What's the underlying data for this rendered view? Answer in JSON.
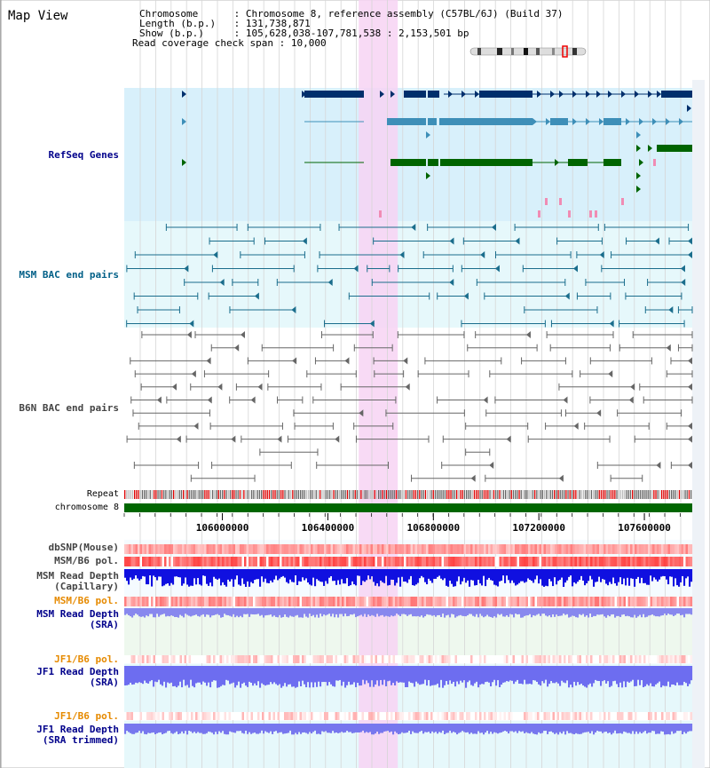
{
  "header": {
    "title": "Map View",
    "chromosome_key": "Chromosome",
    "chromosome_value": "Chromosome 8, reference assembly (C57BL/6J) (Build 37)",
    "length_key": "Length (b.p.)",
    "length_value": "131,738,871",
    "show_key": "Show (b.p.)",
    "show_value": "105,628,038-107,781,538 : 2,153,501 bp",
    "coverage_key": "Read coverage check span",
    "coverage_value": "10,000"
  },
  "tracks": {
    "refseq_genes": "RefSeq Genes",
    "msm_bac": "MSM BAC end pairs",
    "b6n_bac": "B6N BAC end pairs",
    "repeat": "Repeat",
    "chromosome": "chromosome 8",
    "dbsnp": "dbSNP(Mouse)",
    "msm_b6_pol_1": "MSM/B6 pol.",
    "msm_depth_cap_1": "MSM Read Depth",
    "msm_depth_cap_2": "(Capillary)",
    "msm_b6_pol_2": "MSM/B6 pol.",
    "msm_depth_sra_1": "MSM Read Depth",
    "msm_depth_sra_2": "(SRA)",
    "jf1_pol_1": "JF1/B6 pol.",
    "jf1_depth_sra_1": "JF1 Read Depth",
    "jf1_depth_sra_2": "(SRA)",
    "jf1_pol_2": "JF1/B6 pol.",
    "jf1_depth_trim_1": "JF1 Read Depth",
    "jf1_depth_trim_2": "(SRA trimmed)"
  },
  "axis": {
    "ticks": [
      "106000000",
      "106400000",
      "106800000",
      "107200000",
      "107600000"
    ],
    "tick_values": [
      106000000,
      106400000,
      106800000,
      107200000,
      107600000
    ],
    "view_start": 105628038,
    "view_end": 107781538
  },
  "highlight": {
    "start": 106517000,
    "end": 106665000
  },
  "colors": {
    "label_blue": "#00008b",
    "label_teal": "#005f87",
    "label_gray": "#444444",
    "label_orange": "#e68a00",
    "refseq_bg": "#d8f0fb",
    "msm_bac_bg": "#e6f8fb",
    "highlight": "#f7d4f3",
    "gene_dark": "#002f6c",
    "gene_mid": "#3e8fb8",
    "gene_green": "#006400",
    "chromosome_bar": "#006600",
    "depth_blue": "#1010e0",
    "depth_light": "#8888ee",
    "pol_red": "#ee4444"
  }
}
